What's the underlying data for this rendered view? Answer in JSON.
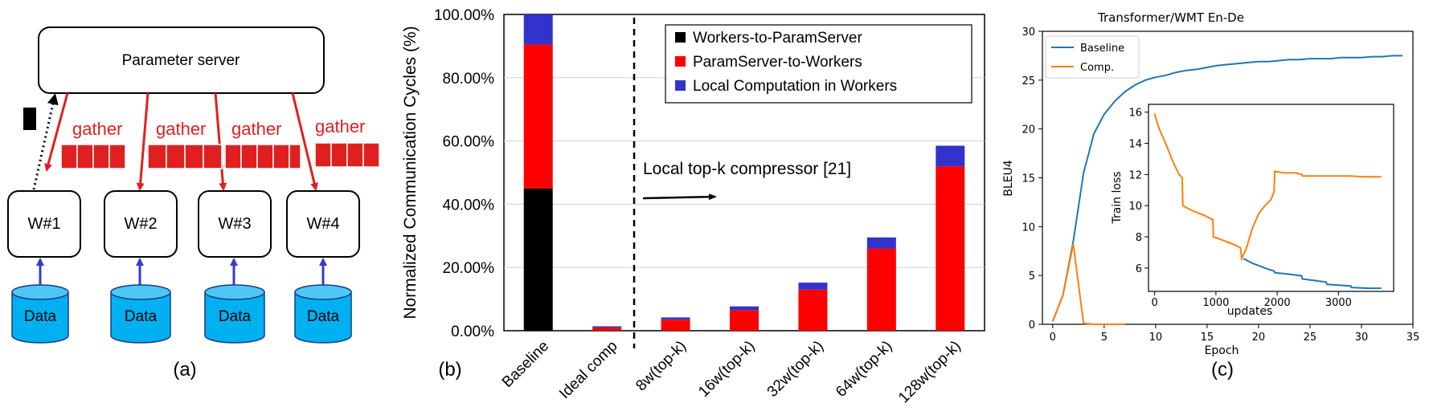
{
  "panel_a": {
    "server_label": "Parameter server",
    "workers": [
      "W#1",
      "W#2",
      "W#3",
      "W#4"
    ],
    "gather_label": "gather",
    "data_label": "Data",
    "caption": "(a)",
    "colors": {
      "arrow": "#e02020",
      "data_fill": "#00b0f0",
      "data_arrow": "#3a3ac8",
      "gather_text": "#e02020"
    }
  },
  "chart_data": [
    {
      "type": "bar",
      "stacked": true,
      "ylabel": "Normalized Communication Cycles (%)",
      "ylim": [
        0,
        100
      ],
      "yticks": [
        "0.00%",
        "20.00%",
        "40.00%",
        "60.00%",
        "80.00%",
        "100.00%"
      ],
      "categories": [
        "Baseline",
        "Ideal comp",
        "8w(top-k)",
        "16w(top-k)",
        "32w(top-k)",
        "64w(top-k)",
        "128w(top-k)"
      ],
      "series": [
        {
          "name": "Workers-to-ParamServer",
          "color": "#000000",
          "values": [
            45,
            0,
            0,
            0,
            0,
            0,
            0
          ]
        },
        {
          "name": "ParamServer-to-Workers",
          "color": "#ff0000",
          "values": [
            45.5,
            1.0,
            3.5,
            6.5,
            13,
            26,
            52
          ]
        },
        {
          "name": "Local Computation in Workers",
          "color": "#3333cc",
          "values": [
            9.5,
            0.4,
            0.7,
            1.2,
            2.2,
            3.5,
            6.5
          ]
        }
      ],
      "annotation": "Local top-k compressor [21]",
      "legend_position": "top-right",
      "grid": "horizontal",
      "caption": "(b)"
    },
    {
      "type": "line",
      "title": "Transformer/WMT En-De",
      "xlabel": "Epoch",
      "ylabel": "BLEU4",
      "xlim": [
        -1,
        35
      ],
      "ylim": [
        0,
        30
      ],
      "xticks": [
        0,
        5,
        10,
        15,
        20,
        25,
        30,
        35
      ],
      "yticks": [
        0,
        5,
        10,
        15,
        20,
        25,
        30
      ],
      "legend_position": "top-left",
      "series": [
        {
          "name": "Baseline",
          "color": "#1f77b4",
          "x": [
            0,
            1,
            2,
            3,
            4,
            5,
            6,
            7,
            8,
            9,
            10,
            11,
            12,
            13,
            14,
            15,
            16,
            17,
            18,
            19,
            20,
            21,
            22,
            23,
            24,
            25,
            26,
            27,
            28,
            29,
            30,
            31,
            32,
            33,
            34
          ],
          "y": [
            0.3,
            3,
            8.5,
            15.5,
            19.5,
            21.5,
            22.8,
            23.8,
            24.5,
            25,
            25.3,
            25.5,
            25.8,
            26,
            26.1,
            26.3,
            26.5,
            26.6,
            26.7,
            26.8,
            26.9,
            26.9,
            27,
            27.1,
            27.1,
            27.2,
            27.2,
            27.2,
            27.3,
            27.3,
            27.3,
            27.4,
            27.4,
            27.5,
            27.5
          ]
        },
        {
          "name": "Comp.",
          "color": "#ff7f0e",
          "x": [
            0,
            1,
            2,
            3,
            4,
            5,
            6,
            7
          ],
          "y": [
            0.3,
            3,
            8.2,
            0.1,
            0,
            0,
            0,
            0
          ]
        }
      ],
      "caption": "(c)",
      "inset": {
        "xlabel": "updates",
        "ylabel": "Train loss",
        "xlim": [
          -100,
          3900
        ],
        "ylim": [
          4.5,
          16.5
        ],
        "xticks": [
          0,
          1000,
          2000,
          3000
        ],
        "yticks": [
          6,
          8,
          10,
          12,
          14,
          16
        ],
        "series": [
          {
            "color": "#ff7f0e",
            "x": [
              0,
              50,
              100,
              200,
              300,
              400,
              450,
              460,
              600,
              800,
              950,
              960,
              1100,
              1300,
              1400,
              1420,
              1500,
              1600,
              1700,
              1800,
              1900,
              1950,
              1960,
              2100,
              2300,
              2400,
              2410,
              2600,
              2800,
              3000,
              3200,
              3400,
              3700
            ],
            "y": [
              15.9,
              15.2,
              14.7,
              13.8,
              12.8,
              12.0,
              11.8,
              10.0,
              9.7,
              9.4,
              9.1,
              8.0,
              7.8,
              7.5,
              7.3,
              6.6,
              7.3,
              8.6,
              9.5,
              10.0,
              10.4,
              10.9,
              12.2,
              12.1,
              12.1,
              12.0,
              11.9,
              11.9,
              11.9,
              11.9,
              11.9,
              11.85,
              11.85
            ]
          },
          {
            "color": "#1f77b4",
            "x": [
              1450,
              1600,
              1800,
              1950,
              1960,
              2200,
              2400,
              2410,
              2600,
              2800,
              2810,
              3000,
              3200,
              3210,
              3500,
              3700
            ],
            "y": [
              6.6,
              6.3,
              6.0,
              5.8,
              5.7,
              5.6,
              5.5,
              5.3,
              5.2,
              5.1,
              4.95,
              4.9,
              4.85,
              4.75,
              4.7,
              4.7
            ]
          }
        ]
      }
    }
  ]
}
